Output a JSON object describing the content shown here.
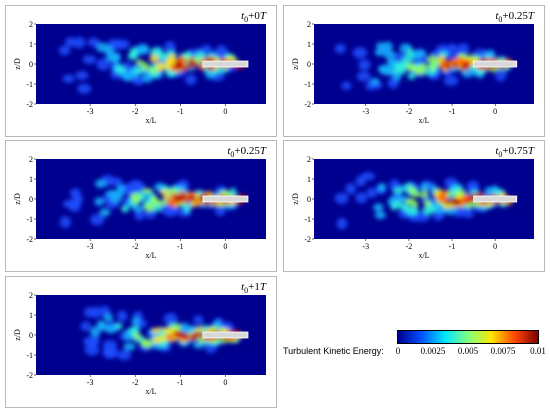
{
  "chart_data": {
    "type": "heatmap",
    "quantity": "Turbulent Kinetic Energy:",
    "xlabel": "x/L",
    "ylabel": "z/D",
    "xlim": [
      -4.2,
      0.9
    ],
    "ylim": [
      -2,
      2
    ],
    "xticks": [
      "-3",
      "-2",
      "-1",
      "0"
    ],
    "xtick_values": [
      -3,
      -2,
      -1,
      0
    ],
    "yticks": [
      "2",
      "1",
      "0",
      "-1",
      "-2"
    ],
    "ytick_values": [
      2,
      1,
      0,
      -1,
      -2
    ],
    "colorbar": {
      "min": 0,
      "max": 0.01,
      "ticks": [
        "0",
        "0.0025",
        "0.005",
        "0.0075",
        "0.01"
      ],
      "tick_values": [
        0,
        0.0025,
        0.005,
        0.0075,
        0.01
      ],
      "colors": [
        "#00008f",
        "#0050ff",
        "#00e5ff",
        "#7fff7f",
        "#ffe600",
        "#ff4800",
        "#7f0000"
      ]
    },
    "body": {
      "x_range": [
        -0.5,
        0.5
      ],
      "z_range": [
        -0.15,
        0.15
      ]
    },
    "panels": [
      {
        "title_base": "t",
        "title_sub": "0",
        "title_plus": "+0",
        "title_unit": "T"
      },
      {
        "title_base": "t",
        "title_sub": "0",
        "title_plus": "+0.25",
        "title_unit": "T"
      },
      {
        "title_base": "t",
        "title_sub": "0",
        "title_plus": "+0.25",
        "title_unit": "T"
      },
      {
        "title_base": "t",
        "title_sub": "0",
        "title_plus": "+0.75",
        "title_unit": "T"
      },
      {
        "title_base": "t",
        "title_sub": "0",
        "title_plus": "+1",
        "title_unit": "T"
      }
    ]
  }
}
